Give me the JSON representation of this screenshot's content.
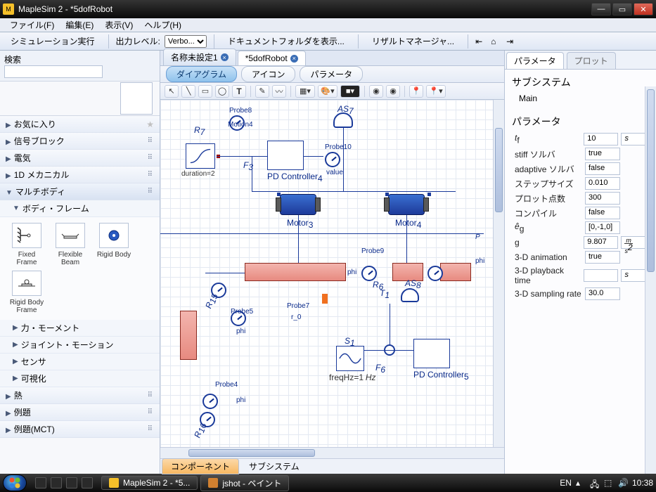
{
  "window": {
    "title": "MapleSim 2 -  *5dofRobot"
  },
  "menu": [
    "ファイル(F)",
    "編集(E)",
    "表示(V)",
    "ヘルプ(H)"
  ],
  "toolbar": {
    "run": "シミュレーション実行",
    "out_level": "出力レベル:",
    "verbose": "Verbo...",
    "docfolder": "ドキュメントフォルダを表示...",
    "resmgr": "リザルトマネージャ..."
  },
  "left": {
    "search": "検索",
    "cats": {
      "fav": "お気に入り",
      "signal": "信号ブロック",
      "elec": "電気",
      "mech1d": "1D メカニカル",
      "multi": "マルチボディ",
      "bodyframe": "ボディ・フレーム",
      "force": "力・モーメント",
      "joint": "ジョイント・モーション",
      "sensor": "センサ",
      "vis": "可視化",
      "heat": "熱",
      "ex1": "例題",
      "ex2": "例題(MCT)"
    },
    "palette": {
      "p1": "Fixed Frame",
      "p2": "Flexible Beam",
      "p3": "Rigid Body",
      "p4": "Rigid Body Frame"
    }
  },
  "tabs": {
    "t1": "名称未設定1",
    "t2": "*5dofRobot"
  },
  "viewtabs": {
    "v1": "ダイアグラム",
    "v2": "アイコン",
    "v3": "パラメータ"
  },
  "canvas": {
    "probe8": "Probe8",
    "motion4": "Motion4",
    "duration": "duration=2",
    "pdctrl4": "PD Controller",
    "pdctrl4n": "4",
    "motor3": "Motor",
    "motor3n": "3",
    "motor4": "Motor",
    "motor4n": "4",
    "probe10": "Probe10",
    "value": "value",
    "probe9": "Probe9",
    "phi": "phi",
    "probe7": "Probe7",
    "r0": "r_0",
    "probe5": "Probe5",
    "probe4": "Probe4",
    "freq": "freqHz=1",
    "hz": "Hz",
    "pdctrl5": "PD Controller",
    "pdctrl5n": "5",
    "as7": "AS",
    "as7n": "7",
    "as8": "AS",
    "as8n": "8",
    "r7": "R",
    "r7n": "7",
    "f3": "F",
    "f3n": "3",
    "f6": "F",
    "f6n": "6",
    "r6": "R",
    "r6n": "6",
    "t1": "T",
    "t1n": "1",
    "s1": "S",
    "s1n": "1",
    "r15": "R",
    "r15n": "15",
    "r16": "R",
    "r16n": "16",
    "p": "P",
    "phi2": "phi",
    "phi3": "phi"
  },
  "bottom": {
    "b1": "コンポーネント",
    "b2": "サブシステム"
  },
  "right": {
    "tab1": "パラメータ",
    "tab2": "プロット",
    "h1": "サブシステム",
    "main": "Main",
    "h2": "パラメータ",
    "params": [
      {
        "name": "t",
        "sub": "f",
        "val": "10",
        "unit": "s"
      },
      {
        "name": "stiff ソルバ",
        "val": "true"
      },
      {
        "name": "adaptive ソルバ",
        "val": "false"
      },
      {
        "name": "ステップサイズ",
        "val": "0.010"
      },
      {
        "name": "プロット点数",
        "val": "300"
      },
      {
        "name": "コンパイル",
        "val": "false"
      },
      {
        "name": "ê",
        "sub": "g",
        "val": "[0,-1,0]"
      },
      {
        "name": "g",
        "val": "9.807",
        "unit": "m/s²",
        "unitfrac": true
      },
      {
        "name": "3-D animation",
        "val": "true"
      },
      {
        "name": "3-D playback time",
        "val": "",
        "unit": "s"
      },
      {
        "name": "3-D sampling rate",
        "val": "30.0"
      }
    ]
  },
  "taskbar": {
    "t1": "MapleSim 2 -  *5...",
    "t2": "jshot - ペイント",
    "lang": "EN",
    "clock": "10:38"
  }
}
